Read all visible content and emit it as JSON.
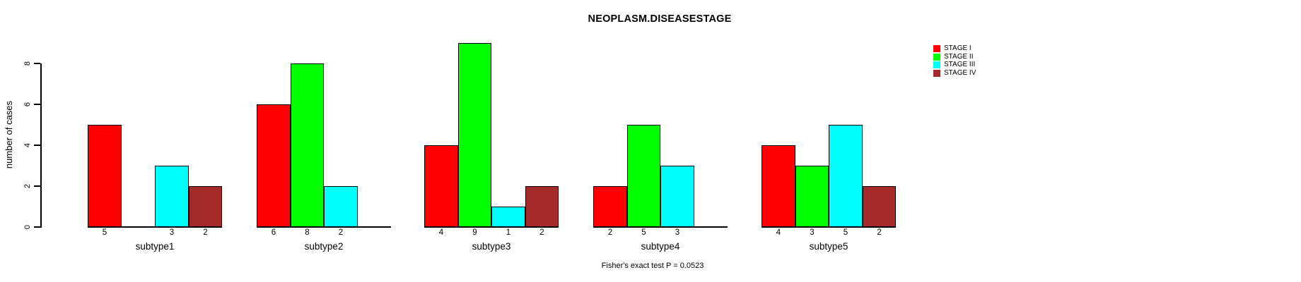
{
  "title": "NEOPLASM.DISEASESTAGE",
  "ylabel": "number of cases",
  "footer": "Fisher's exact test P = 0.0523",
  "legend": {
    "position": "top-right",
    "entries": [
      {
        "label": "STAGE I",
        "color": "#FF0000"
      },
      {
        "label": "STAGE II",
        "color": "#00FF00"
      },
      {
        "label": "STAGE III",
        "color": "#00FFFF"
      },
      {
        "label": "STAGE IV",
        "color": "#A52A2A"
      }
    ]
  },
  "chart_data": {
    "type": "bar",
    "title": "NEOPLASM.DISEASESTAGE",
    "xlabel": "",
    "ylabel": "number of cases",
    "categories": [
      "subtype1",
      "subtype2",
      "subtype3",
      "subtype4",
      "subtype5"
    ],
    "series": [
      {
        "name": "STAGE I",
        "color": "#FF0000",
        "values": [
          5,
          6,
          4,
          2,
          4
        ]
      },
      {
        "name": "STAGE II",
        "color": "#00FF00",
        "values": [
          0,
          8,
          9,
          5,
          3
        ]
      },
      {
        "name": "STAGE III",
        "color": "#00FFFF",
        "values": [
          3,
          2,
          1,
          3,
          5
        ]
      },
      {
        "name": "STAGE IV",
        "color": "#A52A2A",
        "values": [
          2,
          0,
          2,
          0,
          2
        ]
      }
    ],
    "bar_value_labels": "shown under each bar, only for non-zero values",
    "yticks": [
      0,
      2,
      4,
      6,
      8
    ],
    "ylim": [
      0,
      9
    ],
    "grid": false,
    "legend_position": "top-right",
    "annotation": "Fisher's exact test P = 0.0523"
  }
}
